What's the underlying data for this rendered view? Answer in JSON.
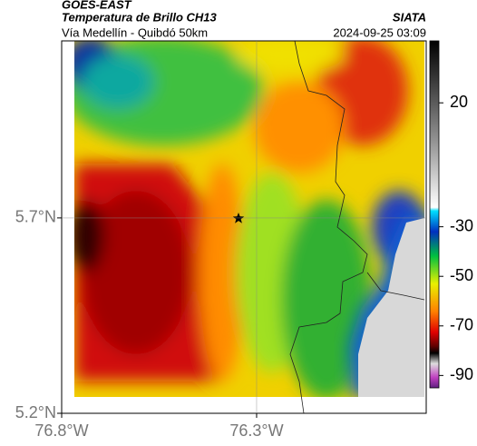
{
  "header": {
    "title": "GOES-EAST",
    "subtitle": "Temperatura de Brillo CH13",
    "source": "SIATA",
    "route": "Vía Medellín - Quibdó 50km",
    "timestamp": "2024-09-25 03:09"
  },
  "map": {
    "lat_lim": [
      5.2,
      6.153
    ],
    "lon_lim": [
      -76.8,
      -75.865
    ],
    "lat_ticks": [
      {
        "value": 5.7,
        "label": "5.7°N"
      },
      {
        "value": 5.2,
        "label": "5.2°N"
      }
    ],
    "lon_ticks": [
      {
        "value": -76.8,
        "label": "76.8°W"
      },
      {
        "value": -76.3,
        "label": "76.3°W"
      }
    ]
  },
  "colorbar": {
    "lim": [
      -95,
      45
    ],
    "ticks": [
      20,
      -30,
      -50,
      -70,
      -90
    ]
  }
}
